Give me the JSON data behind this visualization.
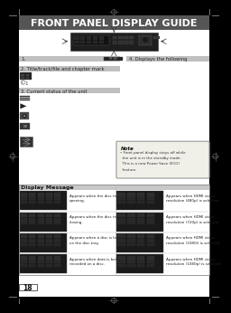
{
  "title": "FRONT PANEL DISPLAY GUIDE",
  "title_bg": "#555555",
  "title_color": "#ffffff",
  "page_bg": "#000000",
  "inner_bg": "#ffffff",
  "page_number": "18",
  "sec1_label": "1.",
  "sec1_right": "4. Displays the following",
  "sec2_label": "2. Title/track/file and chapter mark",
  "sec3_label": "3. Current status of the unit",
  "note_title": "Note",
  "note_lines": [
    "• Front panel display stays off while",
    "  the unit is in the standby mode.",
    "  This is a new Power Save (ECO)",
    "  feature."
  ],
  "display_section_title": "Display Message",
  "display_rows": [
    {
      "left_desc": "Appears when the disc tray is\nopening.",
      "right_desc": "Appears when HDMI video\nresolution (480p) is selected."
    },
    {
      "left_desc": "Appears when the disc tray is\nclosing.",
      "right_desc": "Appears when HDMI video\nresolution (720p) is selected."
    },
    {
      "left_desc": "Appears when a disc is loaded\non the disc tray.",
      "right_desc": "Appears when HDMI video\nresolution (1080i) is selected."
    },
    {
      "left_desc": "Appears when data is being\nrecorded on a disc.",
      "right_desc": "Appears when HDMI video\nresolution (1080p) is selected."
    }
  ],
  "crop_mark_color": "#888888",
  "reg_mark_color": "#666666"
}
